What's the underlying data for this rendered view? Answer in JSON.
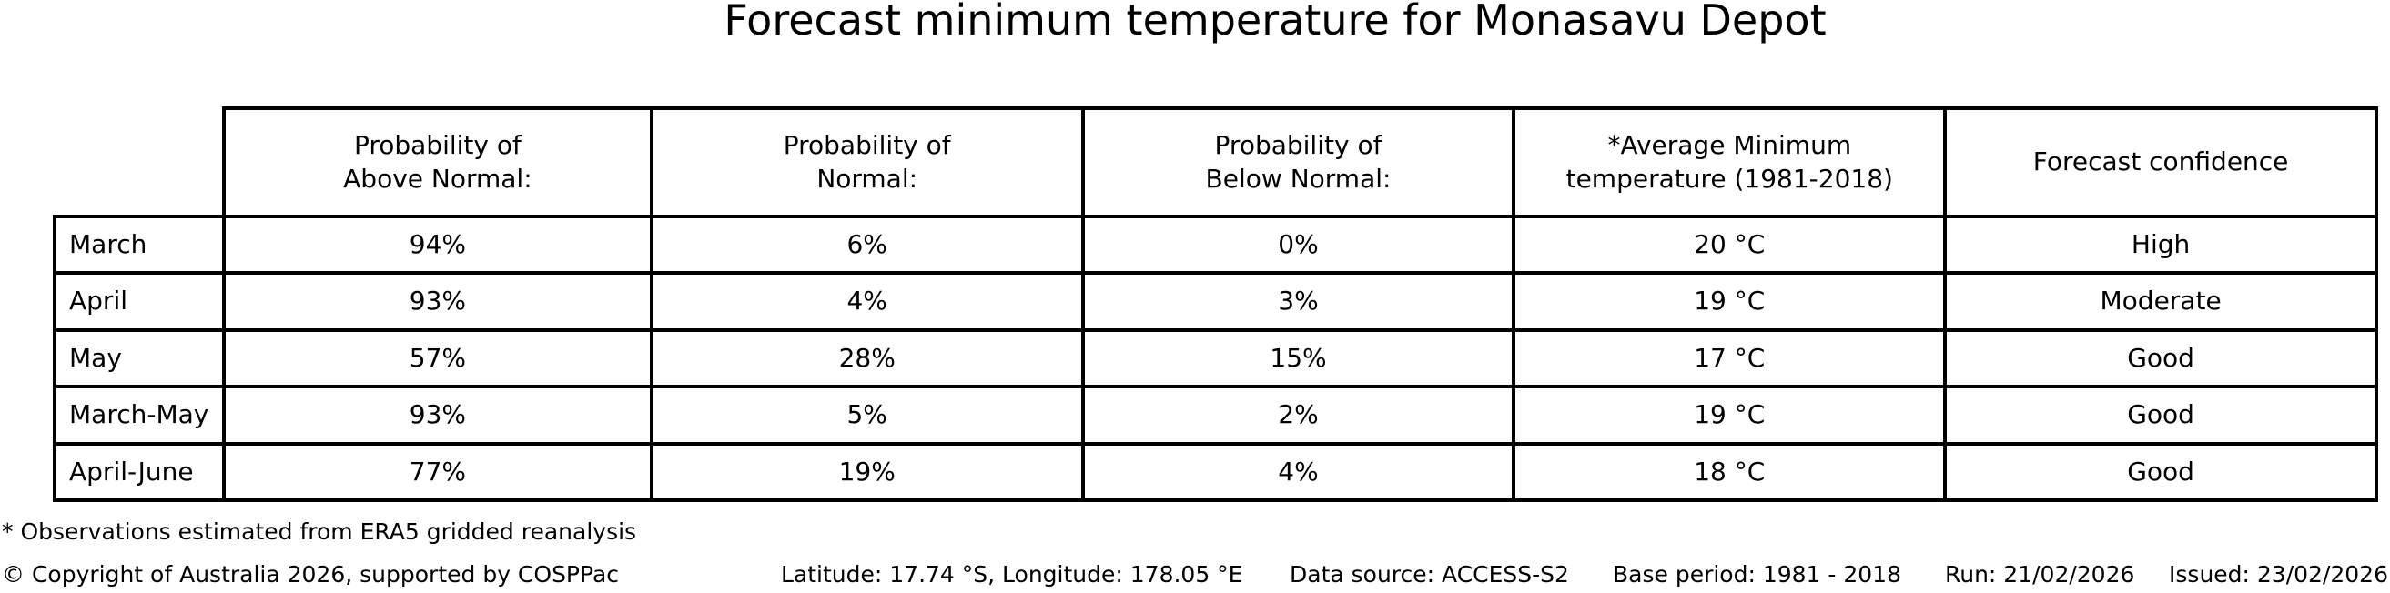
{
  "title": "Forecast minimum temperature for Monasavu Depot",
  "table": {
    "headers": [
      "Probability of\nAbove Normal:",
      "Probability of\nNormal:",
      "Probability of\nBelow Normal:",
      "*Average Minimum\ntemperature (1981-2018)",
      "Forecast confidence"
    ],
    "rows": [
      {
        "label": "March",
        "values": [
          "94%",
          "6%",
          "0%",
          "20 °C",
          "High"
        ]
      },
      {
        "label": "April",
        "values": [
          "93%",
          "4%",
          "3%",
          "19 °C",
          "Moderate"
        ]
      },
      {
        "label": "May",
        "values": [
          "57%",
          "28%",
          "15%",
          "17 °C",
          "Good"
        ]
      },
      {
        "label": "March-May",
        "values": [
          "93%",
          "5%",
          "2%",
          "19 °C",
          "Good"
        ]
      },
      {
        "label": "April-June",
        "values": [
          "77%",
          "19%",
          "4%",
          "18 °C",
          "Good"
        ]
      }
    ]
  },
  "footnote": "* Observations estimated from ERA5 gridded reanalysis",
  "footer": {
    "copyright": "© Copyright of Australia 2026, supported by COSPPac",
    "location": "Latitude: 17.74 °S, Longitude: 178.05 °E",
    "data_source": "Data source: ACCESS-S2",
    "base_period": "Base period: 1981 - 2018",
    "run": "Run: 21/02/2026",
    "issued": "Issued: 23/02/2026"
  },
  "colors": {
    "text": "#000000",
    "border": "#000000",
    "background": "#ffffff"
  },
  "chart_data": {
    "type": "table",
    "title": "Forecast minimum temperature for Monasavu Depot",
    "columns": [
      "",
      "Probability of Above Normal:",
      "Probability of Normal:",
      "Probability of Below Normal:",
      "*Average Minimum temperature (1981-2018)",
      "Forecast confidence"
    ],
    "rows": [
      [
        "March",
        "94%",
        "6%",
        "0%",
        "20 °C",
        "High"
      ],
      [
        "April",
        "93%",
        "4%",
        "3%",
        "19 °C",
        "Moderate"
      ],
      [
        "May",
        "57%",
        "28%",
        "15%",
        "17 °C",
        "Good"
      ],
      [
        "March-May",
        "93%",
        "5%",
        "2%",
        "19 °C",
        "Good"
      ],
      [
        "April-June",
        "77%",
        "19%",
        "4%",
        "18 °C",
        "Good"
      ]
    ],
    "footnote": "* Observations estimated from ERA5 gridded reanalysis",
    "footer_line": "© Copyright of Australia 2026, supported by COSPPac | Latitude: 17.74 °S, Longitude: 178.05 °E | Data source: ACCESS-S2 | Base period: 1981 - 2018 | Run: 21/02/2026 | Issued: 23/02/2026"
  }
}
